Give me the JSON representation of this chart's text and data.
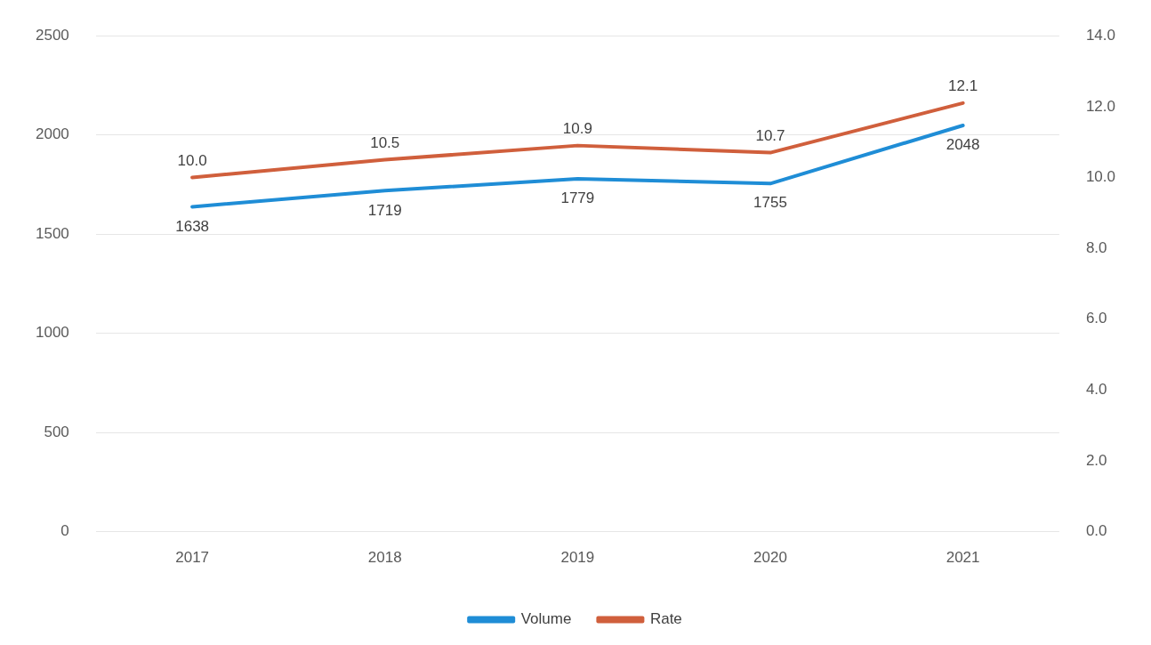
{
  "chart_data": {
    "type": "line",
    "categories": [
      "2017",
      "2018",
      "2019",
      "2020",
      "2021"
    ],
    "series": [
      {
        "name": "Volume",
        "color": "#1f8dd6",
        "values": [
          1638,
          1719,
          1779,
          1755,
          2048
        ]
      },
      {
        "name": "Rate",
        "color": "#d05f3c",
        "values": [
          10.0,
          10.5,
          10.9,
          10.7,
          12.1
        ],
        "value_labels": [
          "10.0",
          "10.5",
          "10.9",
          "10.7",
          "12.1"
        ],
        "axis": "y2"
      }
    ],
    "ylim": [
      0,
      2500
    ],
    "yticks": [
      0,
      500,
      1000,
      1500,
      2000,
      2500
    ],
    "y2lim": [
      0,
      14
    ],
    "y2ticks": [
      {
        "value": 0,
        "label": "0.0"
      },
      {
        "value": 2,
        "label": "2.0"
      },
      {
        "value": 4,
        "label": "4.0"
      },
      {
        "value": 6,
        "label": "6.0"
      },
      {
        "value": 8,
        "label": "8.0"
      },
      {
        "value": 10,
        "label": "10.0"
      },
      {
        "value": 12,
        "label": "12.0"
      },
      {
        "value": 14,
        "label": "14.0"
      }
    ],
    "data_labels": true,
    "grid": "y",
    "legend": "bottom",
    "marker": "none",
    "line_style": "solid"
  }
}
